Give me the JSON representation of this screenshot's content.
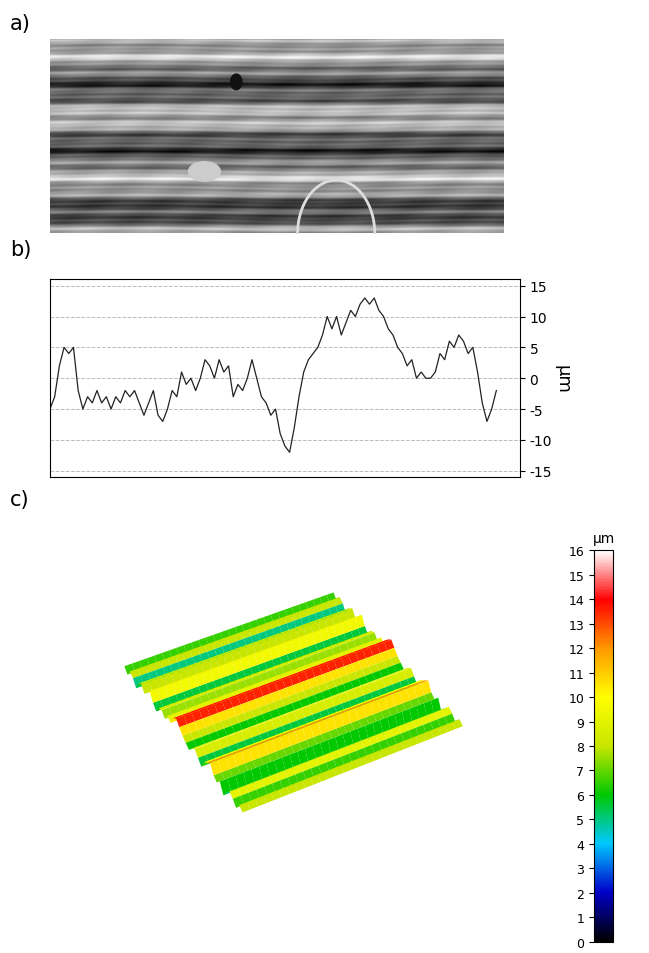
{
  "panel_labels": [
    "a)",
    "b)",
    "c)"
  ],
  "chart_data": [
    {
      "type": "line",
      "x": [
        0,
        1,
        2,
        3,
        4,
        5,
        6,
        7,
        8,
        9,
        10,
        11,
        12,
        13,
        14,
        15,
        16,
        17,
        18,
        19,
        20,
        21,
        22,
        23,
        24,
        25,
        26,
        27,
        28,
        29,
        30,
        31,
        32,
        33,
        34,
        35,
        36,
        37,
        38,
        39,
        40,
        41,
        42,
        43,
        44,
        45,
        46,
        47,
        48,
        49,
        50,
        51,
        52,
        53,
        54,
        55,
        56,
        57,
        58,
        59,
        60,
        61,
        62,
        63,
        64,
        65,
        66,
        67,
        68,
        69,
        70,
        71,
        72,
        73,
        74,
        75,
        76,
        77,
        78,
        79,
        80,
        81,
        82,
        83,
        84,
        85,
        86,
        87,
        88,
        89,
        90,
        91,
        92,
        93,
        94,
        95
      ],
      "values": [
        -5,
        -3,
        2,
        5,
        4,
        5,
        -2,
        -5,
        -3,
        -4,
        -2,
        -4,
        -3,
        -5,
        -3,
        -4,
        -2,
        -3,
        -2,
        -4,
        -6,
        -4,
        -2,
        -6,
        -7,
        -5,
        -2,
        -3,
        1,
        -1,
        0,
        -2,
        0,
        3,
        2,
        0,
        3,
        1,
        2,
        -3,
        -1,
        -2,
        0,
        3,
        0,
        -3,
        -4,
        -6,
        -5,
        -9,
        -11,
        -12,
        -8,
        -3,
        1,
        3,
        4,
        5,
        7,
        10,
        8,
        10,
        7,
        9,
        11,
        10,
        12,
        13,
        12,
        13,
        11,
        10,
        8,
        7,
        5,
        4,
        2,
        3,
        0,
        1,
        0,
        0,
        1,
        4,
        3,
        6,
        5,
        7,
        6,
        4,
        5,
        1,
        -4,
        -7,
        -5,
        -2
      ],
      "xlim": [
        0,
        100
      ],
      "ylim": [
        -16,
        16
      ],
      "yticks": [
        -15,
        -10,
        -5,
        0,
        5,
        10,
        15
      ],
      "y_label": "µm",
      "grid": true,
      "tick_labels": "y",
      "color": "#222222"
    },
    {
      "type": "surface",
      "profile": [
        8,
        5,
        9,
        7,
        3,
        8,
        10,
        6,
        9,
        12,
        7,
        4,
        8,
        9,
        6,
        10,
        8,
        13,
        15,
        12,
        9,
        7,
        5,
        8,
        10,
        7,
        4,
        9,
        11,
        13,
        8,
        6,
        9,
        3,
        7,
        10,
        8,
        5,
        9,
        7
      ],
      "colorbar_label": "µm",
      "clim": [
        0,
        16
      ],
      "cticks": [
        0,
        1,
        2,
        3,
        4,
        5,
        6,
        7,
        8,
        9,
        10,
        11,
        12,
        13,
        14,
        15,
        16
      ],
      "tick_labels": false
    }
  ]
}
